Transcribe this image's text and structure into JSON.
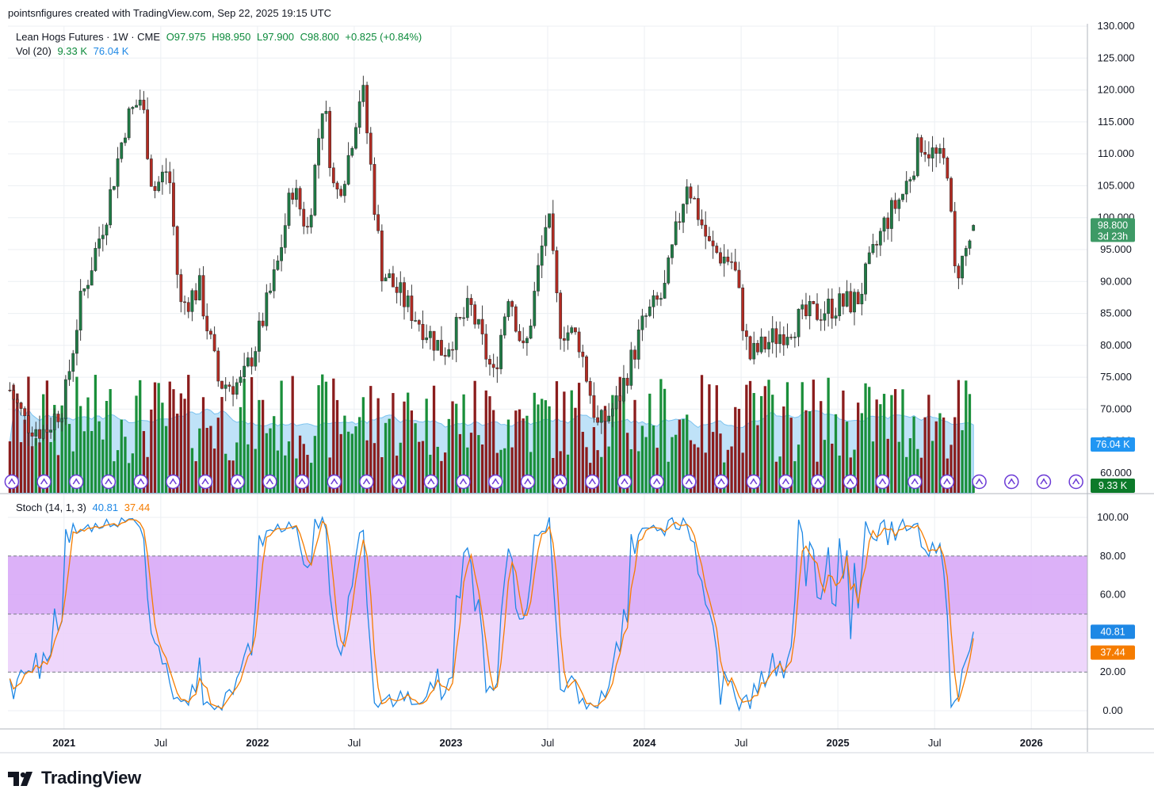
{
  "header": {
    "credit": "pointsnfigures created with TradingView.com, Sep 22, 2025 19:15 UTC",
    "symbol_line": "Lean Hogs Futures · 1W · CME",
    "ohlc": [
      "O97.975",
      "H98.950",
      "L97.900",
      "C98.800",
      "+0.825 (+0.84%)"
    ],
    "vol_label": "Vol (20)",
    "vol_value": "9.33 K",
    "vol_ma": "76.04 K",
    "stoch_label": "Stoch (14, 1, 3)",
    "stoch_k": "40.81",
    "stoch_d": "37.44"
  },
  "price_badge": {
    "price": "98.800",
    "countdown": "3d 23h"
  },
  "vol_badges": {
    "ma": "76.04 K",
    "vol": "9.33 K"
  },
  "stoch_badges": {
    "k": "40.81",
    "d": "37.44"
  },
  "price_axis": [
    "130.000",
    "125.000",
    "120.000",
    "115.000",
    "110.000",
    "105.000",
    "100.000",
    "95.000",
    "90.000",
    "85.000",
    "80.000",
    "75.000",
    "70.000",
    "65.000",
    "60.000"
  ],
  "stoch_axis": [
    "100.00",
    "80.00",
    "60.00",
    "40.00",
    "20.00",
    "0.00"
  ],
  "time_axis": [
    {
      "label": "2021",
      "bold": true,
      "date": 2021.0
    },
    {
      "label": "Jul",
      "bold": false,
      "date": 2021.5
    },
    {
      "label": "2022",
      "bold": true,
      "date": 2022.0
    },
    {
      "label": "Jul",
      "bold": false,
      "date": 2022.5
    },
    {
      "label": "2023",
      "bold": true,
      "date": 2023.0
    },
    {
      "label": "Jul",
      "bold": false,
      "date": 2023.5
    },
    {
      "label": "2024",
      "bold": true,
      "date": 2024.0
    },
    {
      "label": "Jul",
      "bold": false,
      "date": 2024.5
    },
    {
      "label": "2025",
      "bold": true,
      "date": 2025.0
    },
    {
      "label": "Jul",
      "bold": false,
      "date": 2025.5
    },
    {
      "label": "2026",
      "bold": true,
      "date": 2026.0
    }
  ],
  "logo_text": "TradingView",
  "colors": {
    "up": "#1f7a45",
    "down": "#b22b22",
    "vol_up": "#1a8f3a",
    "vol_down": "#8b1d1d",
    "vol_ma_fill": "#a9d8f5",
    "stoch_k": "#1e88e5",
    "stoch_d": "#f57c00",
    "band_inner": "#d8a8f7",
    "band_outer": "#ecd1fb",
    "grid": "#eceff3"
  },
  "chart_data": {
    "type": "candlestick",
    "timeframe": "1W",
    "x_range": [
      2020.71,
      2026.29
    ],
    "ylim": [
      60,
      130
    ],
    "stoch_ylim": [
      -3,
      110
    ],
    "stoch_bands": [
      20,
      50,
      80
    ],
    "price_anchors": [
      {
        "date": 2020.72,
        "close": 73.0
      },
      {
        "date": 2020.8,
        "close": 68.0
      },
      {
        "date": 2020.9,
        "close": 66.5
      },
      {
        "date": 2021.0,
        "close": 71.0
      },
      {
        "date": 2021.08,
        "close": 86.0
      },
      {
        "date": 2021.22,
        "close": 101.0
      },
      {
        "date": 2021.32,
        "close": 115.0
      },
      {
        "date": 2021.4,
        "close": 119.0
      },
      {
        "date": 2021.46,
        "close": 104.0
      },
      {
        "date": 2021.54,
        "close": 108.0
      },
      {
        "date": 2021.6,
        "close": 86.0
      },
      {
        "date": 2021.7,
        "close": 89.0
      },
      {
        "date": 2021.8,
        "close": 74.0
      },
      {
        "date": 2021.92,
        "close": 74.0
      },
      {
        "date": 2022.0,
        "close": 81.0
      },
      {
        "date": 2022.1,
        "close": 92.0
      },
      {
        "date": 2022.18,
        "close": 105.0
      },
      {
        "date": 2022.26,
        "close": 98.0
      },
      {
        "date": 2022.34,
        "close": 119.0
      },
      {
        "date": 2022.4,
        "close": 103.0
      },
      {
        "date": 2022.46,
        "close": 108.0
      },
      {
        "date": 2022.54,
        "close": 121.0
      },
      {
        "date": 2022.64,
        "close": 92.0
      },
      {
        "date": 2022.78,
        "close": 86.0
      },
      {
        "date": 2022.96,
        "close": 79.0
      },
      {
        "date": 2023.1,
        "close": 86.0
      },
      {
        "date": 2023.22,
        "close": 75.0
      },
      {
        "date": 2023.3,
        "close": 89.0
      },
      {
        "date": 2023.38,
        "close": 78.0
      },
      {
        "date": 2023.5,
        "close": 101.0
      },
      {
        "date": 2023.56,
        "close": 83.0
      },
      {
        "date": 2023.66,
        "close": 81.0
      },
      {
        "date": 2023.76,
        "close": 67.0
      },
      {
        "date": 2023.86,
        "close": 71.0
      },
      {
        "date": 2024.0,
        "close": 84.0
      },
      {
        "date": 2024.1,
        "close": 88.0
      },
      {
        "date": 2024.22,
        "close": 106.0
      },
      {
        "date": 2024.34,
        "close": 95.0
      },
      {
        "date": 2024.46,
        "close": 93.0
      },
      {
        "date": 2024.54,
        "close": 78.0
      },
      {
        "date": 2024.66,
        "close": 81.0
      },
      {
        "date": 2024.8,
        "close": 84.0
      },
      {
        "date": 2024.96,
        "close": 86.0
      },
      {
        "date": 2025.1,
        "close": 87.0
      },
      {
        "date": 2025.24,
        "close": 99.0
      },
      {
        "date": 2025.34,
        "close": 104.0
      },
      {
        "date": 2025.43,
        "close": 112.0
      },
      {
        "date": 2025.52,
        "close": 109.0
      },
      {
        "date": 2025.57,
        "close": 108.0
      },
      {
        "date": 2025.6,
        "close": 91.0
      },
      {
        "date": 2025.64,
        "close": 93.0
      },
      {
        "date": 2025.71,
        "close": 98.8
      }
    ],
    "last": {
      "open": 97.975,
      "high": 98.95,
      "low": 97.9,
      "close": 98.8,
      "change": 0.825,
      "change_pct": 0.84
    },
    "stoch_k_last": 40.81,
    "stoch_d_last": 37.44
  }
}
